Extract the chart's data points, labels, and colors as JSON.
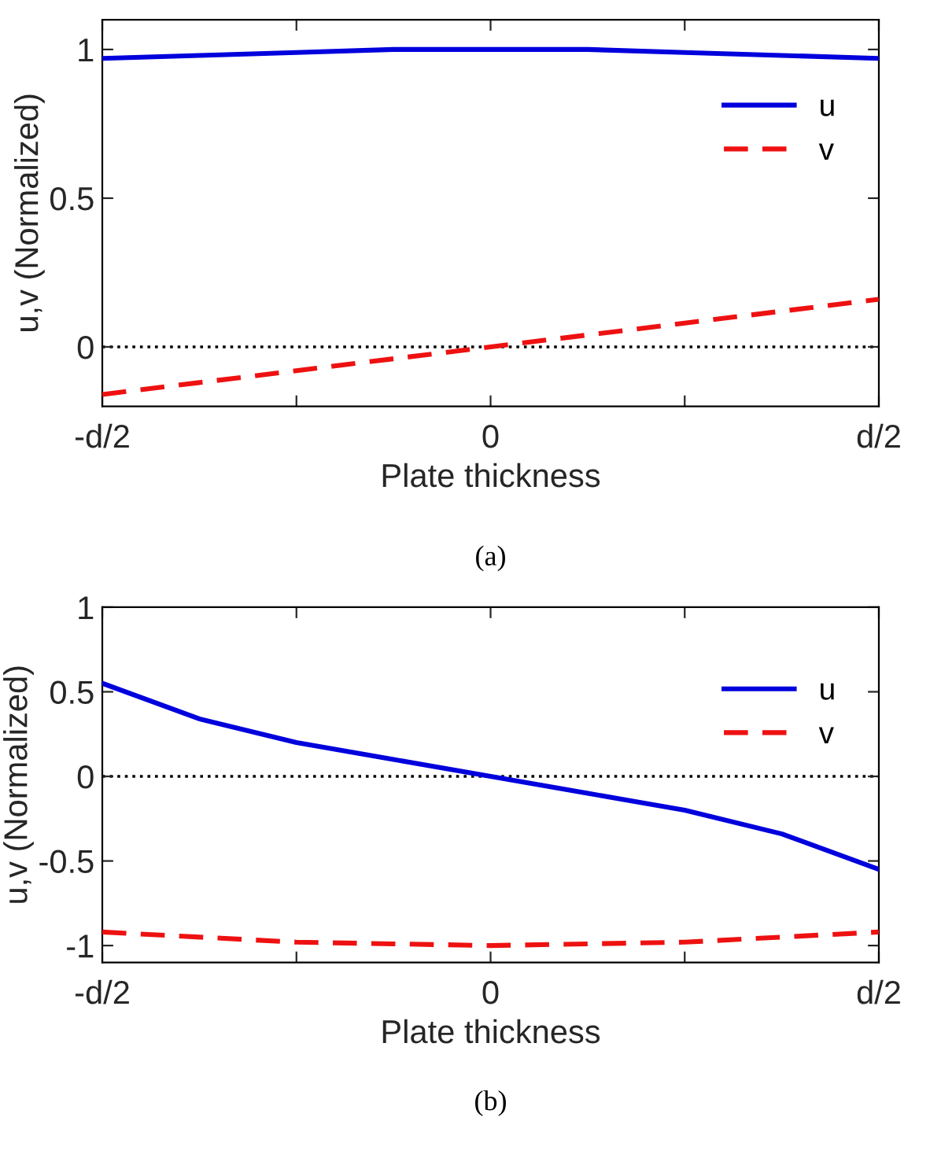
{
  "chart_data": [
    {
      "type": "line",
      "xlabel": "Plate thickness",
      "ylabel": "u,v (Normalized)",
      "annotations": [
        "(a)"
      ],
      "categories": [
        "-d/2",
        null,
        null,
        null,
        "0",
        null,
        null,
        null,
        "d/2"
      ],
      "ylim": [
        -0.2,
        1.1
      ],
      "yticks": [
        0,
        0.5,
        1
      ],
      "grid": false,
      "legend": "top right",
      "marker": "none",
      "ref_lines": [
        {
          "axis": "y",
          "value": 0,
          "label": null,
          "color": "#000000",
          "line_style": "dotted"
        }
      ],
      "series": [
        {
          "name": "u",
          "color": "#0000dd",
          "line_style": "solid",
          "values": [
            0.97,
            0.98,
            0.99,
            1,
            1,
            1,
            0.99,
            0.98,
            0.97
          ]
        },
        {
          "name": "v",
          "color": "#ee1111",
          "line_style": "dashed",
          "values": [
            -0.16,
            -0.12,
            -0.08,
            -0.04,
            0,
            0.04,
            0.08,
            0.12,
            0.16
          ]
        }
      ]
    },
    {
      "type": "line",
      "xlabel": "Plate thickness",
      "ylabel": "u,v (Normalized)",
      "annotations": [
        "(b)"
      ],
      "categories": [
        "-d/2",
        null,
        null,
        null,
        "0",
        null,
        null,
        null,
        "d/2"
      ],
      "ylim": [
        -1.1,
        1
      ],
      "yticks": [
        -1,
        -0.5,
        0,
        0.5,
        1
      ],
      "grid": false,
      "legend": "top right",
      "marker": "none",
      "ref_lines": [
        {
          "axis": "y",
          "value": 0,
          "label": null,
          "color": "#000000",
          "line_style": "dotted"
        }
      ],
      "series": [
        {
          "name": "u",
          "color": "#0000dd",
          "line_style": "solid",
          "values": [
            0.55,
            0.34,
            0.2,
            0.1,
            0,
            -0.1,
            -0.2,
            -0.34,
            -0.55
          ]
        },
        {
          "name": "v",
          "color": "#ee1111",
          "line_style": "dashed",
          "values": [
            -0.92,
            -0.95,
            -0.98,
            -0.99,
            -1,
            -0.99,
            -0.98,
            -0.95,
            -0.92
          ]
        }
      ]
    }
  ]
}
